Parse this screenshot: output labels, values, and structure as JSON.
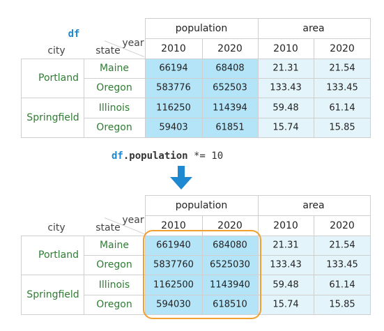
{
  "before": {
    "df_label": "df",
    "index_names": [
      "city",
      "state"
    ],
    "column_names": [
      "year"
    ],
    "groups": [
      "population",
      "area"
    ],
    "years": [
      "2010",
      "2020",
      "2010",
      "2020"
    ],
    "cities": [
      "Portland",
      "Springfield"
    ],
    "states": [
      "Maine",
      "Oregon",
      "Illinois",
      "Oregon"
    ],
    "rows": [
      [
        "66194",
        "68408",
        "21.31",
        "21.54"
      ],
      [
        "583776",
        "652503",
        "133.43",
        "133.45"
      ],
      [
        "116250",
        "114394",
        "59.48",
        "61.14"
      ],
      [
        "59403",
        "61851",
        "15.74",
        "15.85"
      ]
    ]
  },
  "operation": {
    "df": "df",
    "attr": ".population",
    "rest": " *= 10"
  },
  "after": {
    "index_names": [
      "city",
      "state"
    ],
    "column_names": [
      "year"
    ],
    "groups": [
      "population",
      "area"
    ],
    "years": [
      "2010",
      "2020",
      "2010",
      "2020"
    ],
    "cities": [
      "Portland",
      "Springfield"
    ],
    "states": [
      "Maine",
      "Oregon",
      "Illinois",
      "Oregon"
    ],
    "rows": [
      [
        "661940",
        "684080",
        "21.31",
        "21.54"
      ],
      [
        "5837760",
        "6525030",
        "133.43",
        "133.45"
      ],
      [
        "1162500",
        "1143940",
        "59.48",
        "61.14"
      ],
      [
        "594030",
        "618510",
        "15.74",
        "15.85"
      ]
    ]
  },
  "colors": {
    "population_cell": "#b3e4f7",
    "area_cell": "#e4f4fb",
    "header_border": "#cfcfcf",
    "label_text": "#2e7d32",
    "df_text": "#1e88d0",
    "arrow": "#1e88d0",
    "highlight": "#f0a030"
  }
}
